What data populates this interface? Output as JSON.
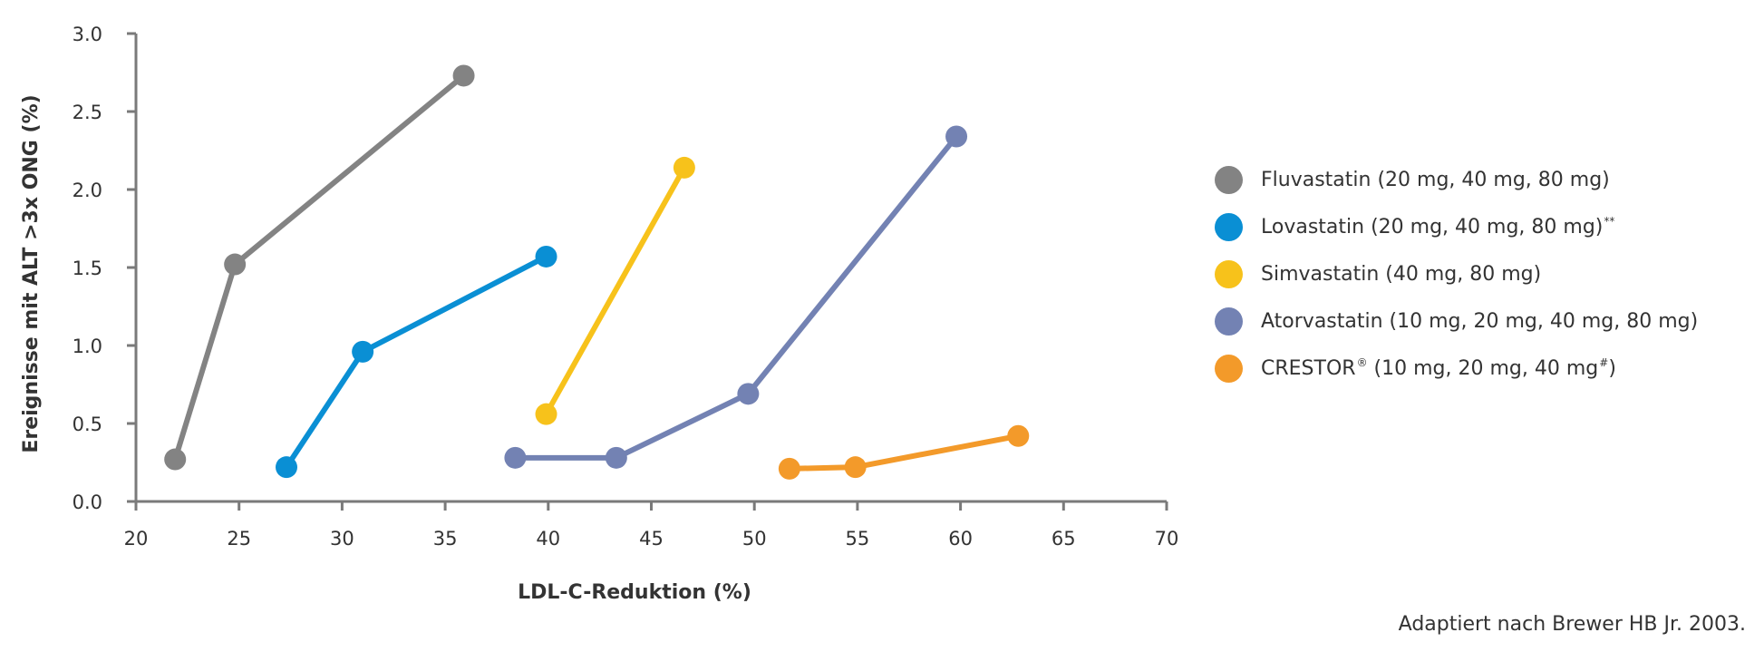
{
  "chart_data": {
    "type": "line",
    "xlabel": "LDL-C-Reduktion (%)",
    "ylabel": "Ereignisse mit ALT >3x ONG (%)",
    "xlim": [
      20,
      70
    ],
    "ylim": [
      0,
      3
    ],
    "x_ticks": [
      "20",
      "25",
      "30",
      "35",
      "40",
      "45",
      "50",
      "55",
      "60",
      "65",
      "70"
    ],
    "y_ticks": [
      "0.0",
      "0.5",
      "1.0",
      "1.5",
      "2.0",
      "2.5",
      "3.0"
    ],
    "grid": false,
    "legend_position": "right",
    "series": [
      {
        "name": "Fluvastatin (20 mg, 40 mg, 80 mg)",
        "name_main": "Fluvastatin (20 mg, 40 mg, 80 mg)",
        "sup": "",
        "name_tail": "",
        "color": "#838383",
        "points": [
          [
            21.9,
            0.27
          ],
          [
            24.8,
            1.52
          ],
          [
            35.9,
            2.73
          ]
        ]
      },
      {
        "name": "Lovastatin (20 mg, 40 mg, 80 mg)**",
        "name_main": "Lovastatin (20 mg, 40 mg, 80 mg)",
        "sup": "**",
        "name_tail": "",
        "color": "#0a8fd4",
        "points": [
          [
            27.3,
            0.22
          ],
          [
            31.0,
            0.96
          ],
          [
            39.9,
            1.57
          ]
        ]
      },
      {
        "name": "Simvastatin (40 mg, 80 mg)",
        "name_main": "Simvastatin (40 mg, 80 mg)",
        "sup": "",
        "name_tail": "",
        "color": "#f7c21b",
        "points": [
          [
            39.9,
            0.56
          ],
          [
            46.6,
            2.14
          ]
        ]
      },
      {
        "name": "Atorvastatin (10 mg, 20 mg, 40 mg, 80 mg)",
        "name_main": "Atorvastatin (10 mg, 20 mg, 40 mg, 80 mg)",
        "sup": "",
        "name_tail": "",
        "color": "#7382b3",
        "points": [
          [
            38.4,
            0.28
          ],
          [
            43.3,
            0.28
          ],
          [
            49.7,
            0.69
          ],
          [
            59.8,
            2.34
          ]
        ]
      },
      {
        "name": "CRESTOR® (10 mg, 20 mg, 40 mg#)",
        "name_main": "CRESTOR",
        "sup": "®",
        "name_tail": " (10 mg, 20 mg, 40 mg",
        "sup2": "#",
        "name_tail2": ")",
        "color": "#f39a2a",
        "points": [
          [
            51.7,
            0.21
          ],
          [
            54.9,
            0.22
          ],
          [
            62.8,
            0.42
          ]
        ]
      }
    ]
  },
  "source_note": "Adaptiert nach Brewer HB Jr. 2003."
}
